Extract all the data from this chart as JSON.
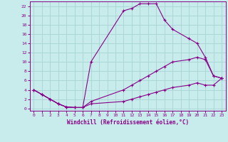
{
  "title": "",
  "xlabel": "Windchill (Refroidissement éolien,°C)",
  "ylabel": "",
  "bg_color": "#c8ecec",
  "grid_color": "#a8d4d4",
  "line_color": "#880088",
  "xlim": [
    -0.5,
    23.5
  ],
  "ylim": [
    -0.5,
    23
  ],
  "xticks": [
    0,
    1,
    2,
    3,
    4,
    5,
    6,
    7,
    8,
    9,
    10,
    11,
    12,
    13,
    14,
    15,
    16,
    17,
    18,
    19,
    20,
    21,
    22,
    23
  ],
  "yticks": [
    0,
    2,
    4,
    6,
    8,
    10,
    12,
    14,
    16,
    18,
    20,
    22
  ],
  "series": [
    {
      "x": [
        0,
        1,
        2,
        3,
        4,
        5,
        6,
        7,
        11,
        12,
        13,
        14,
        15,
        16,
        17,
        19,
        20,
        21,
        22,
        23
      ],
      "y": [
        4,
        3,
        2,
        1,
        0.3,
        0.2,
        0.2,
        10,
        21,
        21.5,
        22.5,
        22.5,
        22.5,
        19,
        17,
        15,
        14,
        11,
        7,
        6.5
      ]
    },
    {
      "x": [
        0,
        1,
        2,
        3,
        4,
        5,
        6,
        7,
        11,
        12,
        13,
        14,
        15,
        16,
        17,
        19,
        20,
        21,
        22,
        23
      ],
      "y": [
        4,
        3,
        2,
        1,
        0.3,
        0.2,
        0.2,
        1.5,
        4,
        5,
        6,
        7,
        8,
        9,
        10,
        10.5,
        11,
        10.5,
        7,
        6.5
      ]
    },
    {
      "x": [
        0,
        1,
        2,
        3,
        4,
        5,
        6,
        7,
        11,
        12,
        13,
        14,
        15,
        16,
        17,
        19,
        20,
        21,
        22,
        23
      ],
      "y": [
        4,
        3,
        2,
        1,
        0.3,
        0.2,
        0.2,
        1.0,
        1.5,
        2,
        2.5,
        3,
        3.5,
        4,
        4.5,
        5,
        5.5,
        5,
        5,
        6.5
      ]
    }
  ]
}
